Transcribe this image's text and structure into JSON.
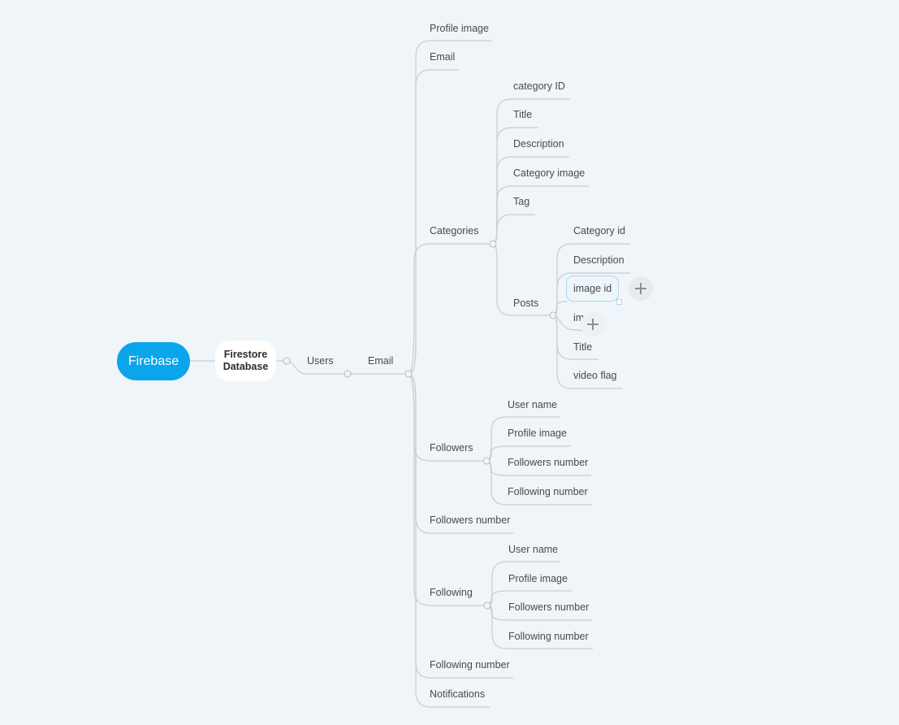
{
  "colors": {
    "background": "#eff5f8",
    "root": "#0aa5ea",
    "line": "#c9cdd0",
    "selection": "#a9d8f4"
  },
  "root": {
    "label": "Firebase"
  },
  "main_topic": {
    "line1": "Firestore",
    "line2": "Database"
  },
  "branches": {
    "users": "Users",
    "email_root": "Email",
    "profile_image": "Profile image",
    "email": "Email",
    "categories": "Categories",
    "followers": "Followers",
    "followers_number": "Followers number",
    "following": "Following",
    "following_number": "Following number",
    "notifications": "Notifications"
  },
  "categories_children": {
    "category_id": "category ID",
    "title": "Title",
    "description": "Description",
    "category_image": "Category image",
    "tag": "Tag",
    "posts": "Posts"
  },
  "posts_children": {
    "category_id": "Category id",
    "description": "Description",
    "image_id": "image id",
    "image_partial": "im",
    "title": "Title",
    "video_flag": "video flag"
  },
  "followers_children": {
    "user_name": "User name",
    "profile_image": "Profile image",
    "followers_number": "Followers number",
    "following_number": "Following number"
  },
  "following_children": {
    "user_name": "User name",
    "profile_image": "Profile image",
    "followers_number": "Followers number",
    "following_number": "Following number"
  },
  "controls": {
    "add_icon": "plus-icon"
  }
}
